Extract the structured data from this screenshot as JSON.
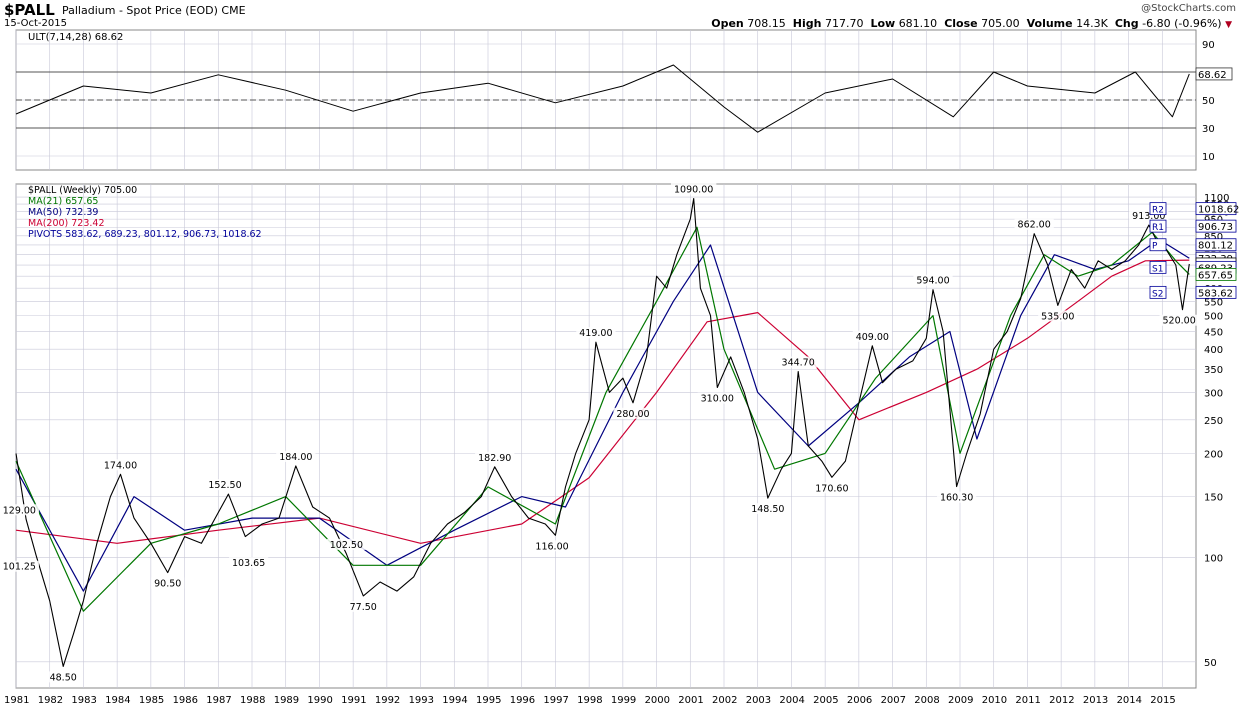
{
  "header": {
    "symbol": "$PALL",
    "subtitle": "Palladium - Spot Price (EOD)",
    "exchange": "CME",
    "date": "15-Oct-2015",
    "copyright": "@StockCharts.com",
    "open_label": "Open",
    "open": "708.15",
    "high_label": "High",
    "high": "717.70",
    "low_label": "Low",
    "low": "681.10",
    "close_label": "Close",
    "close": "705.00",
    "volume_label": "Volume",
    "volume": "14.3K",
    "chg_label": "Chg",
    "chg": "-6.80 (-0.96%)"
  },
  "colors": {
    "price": "#000000",
    "down_bar": "#cc0000",
    "ma21": "#007700",
    "ma50": "#000080",
    "ma200": "#cc0033",
    "pivots": "#000099",
    "ult": "#000000",
    "grid": "#c8c8d8",
    "ult_fill": "#4f9a4f"
  },
  "chart_data": [
    {
      "type": "line",
      "title": "ULT(7,14,28) 68.62",
      "indicator": "Ultimate Oscillator",
      "ylim": [
        0,
        100
      ],
      "y_ticks": [
        "90",
        "70",
        "50",
        "30",
        "10"
      ],
      "reference_lines": [
        30,
        50,
        70
      ],
      "last_value_label": "68.62",
      "x_years": [
        1981,
        1982,
        1983,
        1984,
        1985,
        1986,
        1987,
        1988,
        1989,
        1990,
        1991,
        1992,
        1993,
        1994,
        1995,
        1996,
        1997,
        1998,
        1999,
        2000,
        2001,
        2002,
        2003,
        2004,
        2005,
        2006,
        2007,
        2008,
        2009,
        2010,
        2011,
        2012,
        2013,
        2014,
        2015
      ],
      "series": [
        {
          "name": "ULT(7,14,28)",
          "x": [
            1981,
            1983,
            1985,
            1987,
            1989,
            1991,
            1993,
            1995,
            1997,
            1999,
            2000.5,
            2002,
            2003,
            2005,
            2007,
            2008.8,
            2010,
            2011,
            2013,
            2014.2,
            2015.3,
            2015.8
          ],
          "values": [
            40,
            60,
            55,
            68,
            57,
            42,
            55,
            62,
            48,
            60,
            75,
            45,
            27,
            55,
            65,
            38,
            70,
            60,
            55,
            70,
            38,
            68.62
          ]
        }
      ]
    },
    {
      "type": "line",
      "title": "$PALL (Weekly) 705.00",
      "scale": "log",
      "ylim": [
        42,
        1200
      ],
      "y_ticks": [
        "1100",
        "1050",
        "1000",
        "950",
        "900",
        "850",
        "800",
        "750",
        "700",
        "650",
        "600",
        "550",
        "500",
        "450",
        "400",
        "350",
        "300",
        "250",
        "200",
        "150",
        "100",
        "50"
      ],
      "x_ticks": [
        "1981",
        "1982",
        "1983",
        "1984",
        "1985",
        "1986",
        "1987",
        "1988",
        "1989",
        "1990",
        "1991",
        "1992",
        "1993",
        "1994",
        "1995",
        "1996",
        "1997",
        "1998",
        "1999",
        "2000",
        "2001",
        "2002",
        "2003",
        "2004",
        "2005",
        "2006",
        "2007",
        "2008",
        "2009",
        "2010",
        "2011",
        "2012",
        "2013",
        "2014",
        "2015"
      ],
      "grid": true,
      "legend": [
        {
          "label": "$PALL (Weekly) 705.00",
          "color": "#000000"
        },
        {
          "label": "MA(21) 657.65",
          "color": "#007700"
        },
        {
          "label": "MA(50) 732.39",
          "color": "#000080"
        },
        {
          "label": "MA(200) 723.42",
          "color": "#cc0033"
        },
        {
          "label": "PIVOTS 583.62, 689.23, 801.12, 906.73, 1018.62",
          "color": "#000099"
        }
      ],
      "legend_position": "top-left",
      "annotations": [
        {
          "x": 1981.1,
          "y": 129,
          "label": "129.00",
          "pos": "above"
        },
        {
          "x": 1981.1,
          "y": 101.25,
          "label": "101.25",
          "pos": "below"
        },
        {
          "x": 1982.4,
          "y": 48.5,
          "label": "48.50",
          "pos": "below"
        },
        {
          "x": 1984.1,
          "y": 174,
          "label": "174.00",
          "pos": "above"
        },
        {
          "x": 1985.5,
          "y": 90.5,
          "label": "90.50",
          "pos": "below"
        },
        {
          "x": 1987.2,
          "y": 152.5,
          "label": "152.50",
          "pos": "above"
        },
        {
          "x": 1987.9,
          "y": 103.65,
          "label": "103.65",
          "pos": "below"
        },
        {
          "x": 1989.3,
          "y": 184,
          "label": "184.00",
          "pos": "above"
        },
        {
          "x": 1990.8,
          "y": 102.5,
          "label": "102.50",
          "pos": "above"
        },
        {
          "x": 1991.3,
          "y": 77.5,
          "label": "77.50",
          "pos": "below"
        },
        {
          "x": 1995.2,
          "y": 182.9,
          "label": "182.90",
          "pos": "above"
        },
        {
          "x": 1996.9,
          "y": 116,
          "label": "116.00",
          "pos": "below"
        },
        {
          "x": 1998.2,
          "y": 419,
          "label": "419.00",
          "pos": "above"
        },
        {
          "x": 1999.3,
          "y": 280,
          "label": "280.00",
          "pos": "below"
        },
        {
          "x": 2001.1,
          "y": 1090,
          "label": "1090.00",
          "pos": "above"
        },
        {
          "x": 2001.8,
          "y": 310,
          "label": "310.00",
          "pos": "below"
        },
        {
          "x": 2003.3,
          "y": 148.5,
          "label": "148.50",
          "pos": "below"
        },
        {
          "x": 2004.2,
          "y": 344.7,
          "label": "344.70",
          "pos": "above"
        },
        {
          "x": 2005.2,
          "y": 170.6,
          "label": "170.60",
          "pos": "below"
        },
        {
          "x": 2006.4,
          "y": 409,
          "label": "409.00",
          "pos": "above"
        },
        {
          "x": 2008.2,
          "y": 594,
          "label": "594.00",
          "pos": "above"
        },
        {
          "x": 2008.9,
          "y": 160.3,
          "label": "160.30",
          "pos": "below"
        },
        {
          "x": 2011.2,
          "y": 862,
          "label": "862.00",
          "pos": "above"
        },
        {
          "x": 2011.9,
          "y": 535,
          "label": "535.00",
          "pos": "below"
        },
        {
          "x": 2014.6,
          "y": 913,
          "label": "913.00",
          "pos": "above"
        },
        {
          "x": 2015.5,
          "y": 520,
          "label": "520.00",
          "pos": "below"
        }
      ],
      "right_labels": [
        {
          "label": "1018.62",
          "y": 1018.62,
          "pivot": "R2"
        },
        {
          "label": "906.73",
          "y": 906.73,
          "pivot": "R1"
        },
        {
          "label": "801.12",
          "y": 801.12,
          "pivot": "P"
        },
        {
          "label": "732.39",
          "y": 732.39,
          "pivot": ""
        },
        {
          "label": "705.00",
          "y": 705,
          "pivot": ""
        },
        {
          "label": "689.23",
          "y": 689.23,
          "pivot": "S1"
        },
        {
          "label": "657.65",
          "y": 657.65,
          "pivot": ""
        },
        {
          "label": "583.62",
          "y": 583.62,
          "pivot": "S2"
        }
      ],
      "series": [
        {
          "name": "$PALL (Weekly)",
          "x": [
            1981.0,
            1981.3,
            1981.6,
            1982.0,
            1982.4,
            1982.7,
            1983.0,
            1983.4,
            1983.8,
            1984.1,
            1984.5,
            1985.0,
            1985.5,
            1986.0,
            1986.5,
            1987.0,
            1987.3,
            1987.8,
            1988.3,
            1988.8,
            1989.3,
            1989.8,
            1990.3,
            1990.8,
            1991.3,
            1991.8,
            1992.3,
            1992.8,
            1993.3,
            1993.8,
            1994.3,
            1994.8,
            1995.2,
            1995.7,
            1996.2,
            1996.7,
            1997.0,
            1997.3,
            1997.6,
            1998.0,
            1998.2,
            1998.6,
            1999.0,
            1999.3,
            1999.7,
            2000.0,
            2000.3,
            2000.6,
            2001.0,
            2001.1,
            2001.3,
            2001.6,
            2001.8,
            2002.2,
            2002.6,
            2003.0,
            2003.3,
            2003.7,
            2004.0,
            2004.2,
            2004.5,
            2004.9,
            2005.2,
            2005.6,
            2006.0,
            2006.4,
            2006.7,
            2007.1,
            2007.6,
            2008.0,
            2008.2,
            2008.5,
            2008.9,
            2009.2,
            2009.6,
            2010.0,
            2010.4,
            2010.8,
            2011.2,
            2011.6,
            2011.9,
            2012.3,
            2012.7,
            2013.1,
            2013.5,
            2013.9,
            2014.3,
            2014.6,
            2014.9,
            2015.1,
            2015.4,
            2015.6,
            2015.8
          ],
          "values": [
            200,
            129,
            101.25,
            75,
            48.5,
            60,
            75,
            110,
            150,
            174,
            130,
            110,
            90.5,
            115,
            110,
            135,
            152.5,
            115,
            125,
            130,
            184,
            140,
            130,
            102.5,
            77.5,
            85,
            80,
            88,
            110,
            125,
            135,
            150,
            182.9,
            150,
            130,
            125,
            116,
            160,
            200,
            250,
            419,
            300,
            330,
            280,
            380,
            650,
            600,
            750,
            950,
            1090,
            600,
            500,
            310,
            380,
            300,
            220,
            148.5,
            180,
            200,
            344.7,
            210,
            190,
            170.6,
            190,
            280,
            409,
            320,
            350,
            370,
            430,
            594,
            450,
            160.3,
            200,
            260,
            400,
            450,
            560,
            862,
            700,
            535,
            680,
            600,
            720,
            680,
            720,
            800,
            913,
            800,
            780,
            700,
            520,
            705
          ]
        },
        {
          "name": "MA(21)",
          "x": [
            1981,
            1983,
            1985,
            1987,
            1989,
            1991,
            1993,
            1995,
            1997,
            1998.5,
            2000,
            2001.2,
            2002,
            2003.5,
            2005,
            2006.5,
            2008.2,
            2009,
            2010.5,
            2011.5,
            2012.5,
            2013.5,
            2014.7,
            2015.4,
            2015.8
          ],
          "values": [
            190,
            70,
            110,
            125,
            150,
            95,
            95,
            160,
            125,
            300,
            550,
            900,
            400,
            180,
            200,
            330,
            500,
            200,
            500,
            750,
            650,
            700,
            870,
            720,
            657.65
          ]
        },
        {
          "name": "MA(50)",
          "x": [
            1981,
            1983,
            1984.5,
            1986,
            1988,
            1990,
            1992,
            1994,
            1996,
            1997.3,
            1999,
            2000.5,
            2001.6,
            2003,
            2004.5,
            2006,
            2007.5,
            2008.7,
            2009.5,
            2010.8,
            2011.8,
            2013,
            2014,
            2014.9,
            2015.8
          ],
          "values": [
            180,
            80,
            150,
            120,
            130,
            130,
            95,
            120,
            150,
            140,
            300,
            550,
            800,
            300,
            210,
            280,
            380,
            450,
            220,
            500,
            750,
            680,
            720,
            830,
            732.39
          ]
        },
        {
          "name": "MA(200)",
          "x": [
            1981,
            1984,
            1987,
            1990,
            1993,
            1996,
            1998,
            2000,
            2001.5,
            2003,
            2004.5,
            2006,
            2008,
            2009.5,
            2011,
            2012.5,
            2013.5,
            2014.5,
            2015.8
          ],
          "values": [
            120,
            110,
            120,
            130,
            110,
            125,
            170,
            300,
            480,
            510,
            380,
            250,
            300,
            350,
            430,
            550,
            650,
            720,
            723.42
          ]
        }
      ]
    }
  ]
}
